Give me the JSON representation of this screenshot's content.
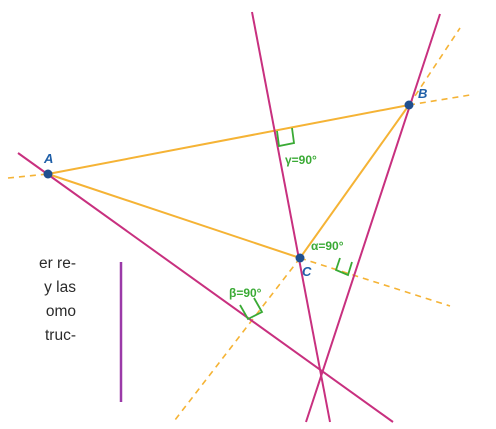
{
  "points": {
    "A": "A",
    "B": "B",
    "C": "C"
  },
  "angles": {
    "alpha": "α=90°",
    "beta": "β=90°",
    "gamma": "γ=90°"
  },
  "side_text": [
    "er re-",
    "y las",
    "omo",
    "truc-"
  ],
  "colors": {
    "triangle": "#f5b335",
    "altitude": "#c8307f",
    "angle_label": "#3aaa35",
    "point_label": "#1f5fa8",
    "point_fill": "#1f4f8f",
    "margin_bar": "#9b3aa8",
    "text": "#2b2b2b"
  }
}
